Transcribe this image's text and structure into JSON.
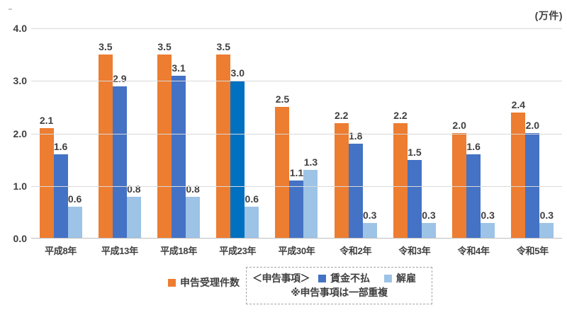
{
  "chart_data": {
    "type": "bar",
    "title": "",
    "unit_label": "(万件)",
    "categories": [
      "平成8年",
      "平成13年",
      "平成18年",
      "平成23年",
      "平成30年",
      "令和2年",
      "令和3年",
      "令和4年",
      "令和5年"
    ],
    "series": [
      {
        "name": "申告受理件数",
        "color": "#ED7D31",
        "values": [
          2.1,
          3.5,
          3.5,
          3.5,
          2.5,
          2.2,
          2.2,
          2.0,
          2.4
        ]
      },
      {
        "name": "賃金不払",
        "color": "#4472C4",
        "highlight_index": 3,
        "highlight_color": "#0070C0",
        "values": [
          1.6,
          2.9,
          3.1,
          3.0,
          1.1,
          1.8,
          1.5,
          1.6,
          2.0
        ]
      },
      {
        "name": "解雇",
        "color": "#9DC3E6",
        "values": [
          0.6,
          0.8,
          0.8,
          0.6,
          1.3,
          0.3,
          0.3,
          0.3,
          0.3
        ]
      }
    ],
    "y_ticks": [
      4.0,
      3.0,
      2.0,
      1.0,
      0.0
    ],
    "ylim": [
      0,
      4
    ],
    "grid": true,
    "value_labels": true,
    "legend_position": "bottom",
    "text_color": "#404040",
    "grid_color": "#D9D9D9",
    "axis_color": "#BFBFBF"
  },
  "legend": {
    "series1_label": "申告受理件数",
    "box_title": "＜申告事項＞",
    "series2_label": "賃金不払",
    "series3_label": "解雇",
    "note": "※申告事項は一部重複"
  }
}
